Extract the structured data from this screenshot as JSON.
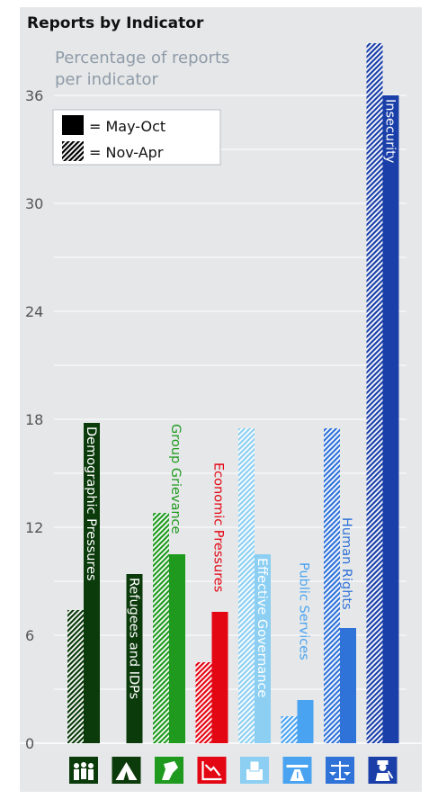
{
  "chart_data": {
    "type": "bar",
    "title": "Reports by Indicator",
    "ylabel": "Percentage of reports per indicator",
    "ylabel_lines": [
      "Percentage of reports",
      "per indicator"
    ],
    "ylim": [
      0,
      36
    ],
    "yticks": [
      0,
      6,
      12,
      18,
      24,
      30,
      36
    ],
    "grid": true,
    "legend_position": "top-left",
    "legend": [
      {
        "symbol": "solid",
        "label": "= May-Oct"
      },
      {
        "symbol": "hatched",
        "label": "= Nov-Apr"
      }
    ],
    "categories": [
      "Demographic Pressures",
      "Refugees and IDPs",
      "Group Grievance",
      "Economic Pressures",
      "Effective Governance",
      "Public Services",
      "Human Rights",
      "Insecurity"
    ],
    "icons": [
      "people-icon",
      "tent-icon",
      "fist-icon",
      "falling-chart-icon",
      "ballot-box-icon",
      "road-icon",
      "scales-icon",
      "police-officer-icon"
    ],
    "colors": [
      "#0b3a0b",
      "#0b3a0b",
      "#1f9a1f",
      "#e30613",
      "#8ccff2",
      "#4aa3f0",
      "#2f72d8",
      "#1a3fa8"
    ],
    "series": [
      {
        "name": "Nov-Apr",
        "pattern": "hatched",
        "values": [
          7.4,
          0,
          12.8,
          4.5,
          17.5,
          1.5,
          17.5,
          38.9
        ]
      },
      {
        "name": "May-Oct",
        "pattern": "solid",
        "values": [
          17.8,
          9.4,
          10.5,
          7.3,
          10.5,
          2.4,
          6.4,
          36.0
        ]
      }
    ]
  }
}
